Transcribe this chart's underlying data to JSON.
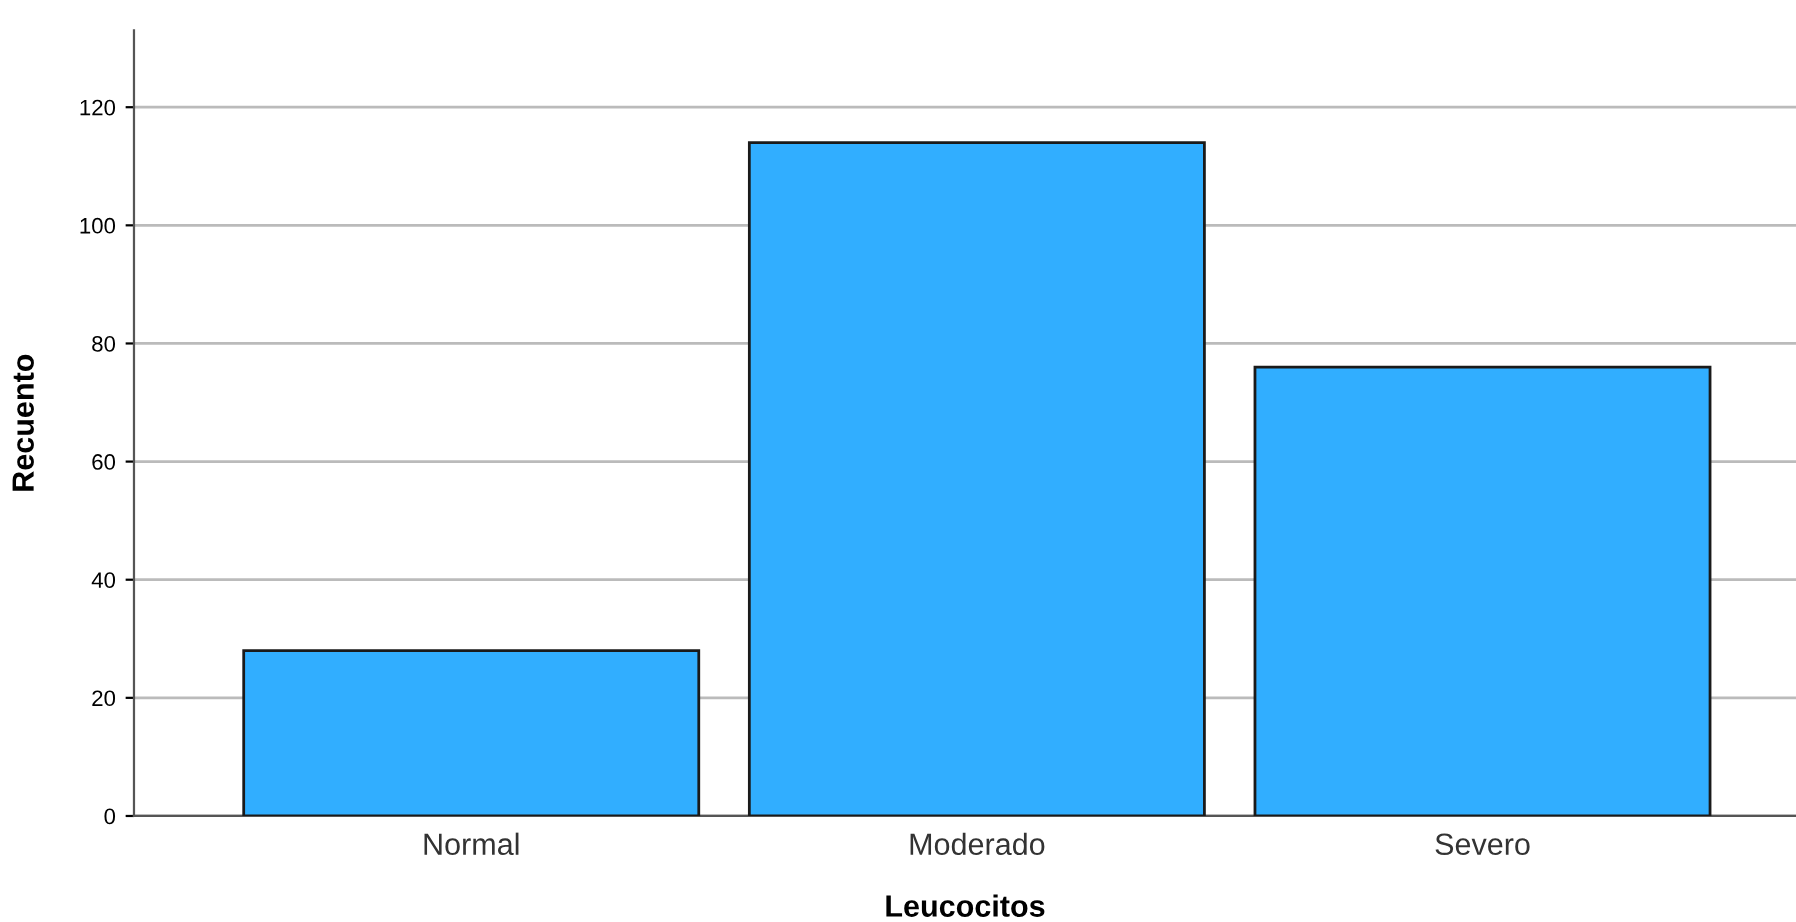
{
  "chart_data": {
    "type": "bar",
    "xlabel": "Leucocitos",
    "ylabel": "Recuento",
    "categories": [
      "Normal",
      "Moderado",
      "Severo"
    ],
    "values": [
      28,
      114,
      76
    ],
    "color": "#31aeff",
    "ylim": [
      0,
      133
    ],
    "yticks": [
      0,
      20,
      40,
      60,
      80,
      100,
      120
    ],
    "grid": "y"
  }
}
